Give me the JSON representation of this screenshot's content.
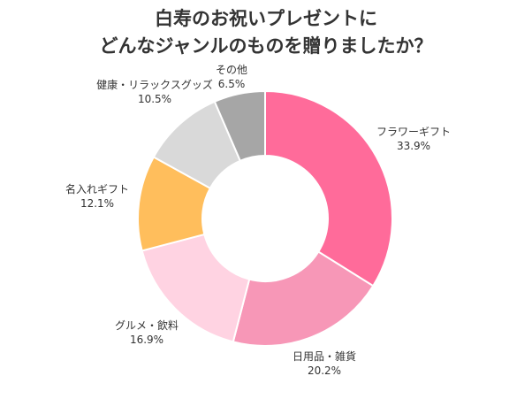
{
  "title": {
    "line1": "白寿のお祝いプレゼントに",
    "line2": "どんなジャンルのものを贈りましたか？"
  },
  "chart_data": {
    "type": "pie",
    "donut": true,
    "title": "白寿のお祝いプレゼントに どんなジャンルのものを贈りましたか？",
    "categories": [
      "フラワーギフト",
      "日用品・雑貨",
      "グルメ・飲料",
      "名入れギフト",
      "健康・リラックスグッズ",
      "その他"
    ],
    "values": [
      33.9,
      20.2,
      16.9,
      12.1,
      10.5,
      6.5
    ],
    "labels": [
      "33.9%",
      "20.2%",
      "16.9%",
      "12.1%",
      "10.5%",
      "6.5%"
    ],
    "colors": [
      "#ff6b9a",
      "#f797b7",
      "#ffd3e2",
      "#ffbe5c",
      "#d9d9d9",
      "#a6a6a6"
    ],
    "legend": "none"
  }
}
